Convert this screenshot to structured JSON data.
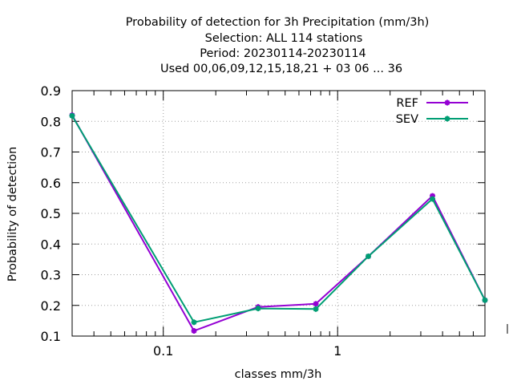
{
  "chart_data": {
    "type": "line",
    "title_lines": [
      "Probability of detection  for 3h Precipitation (mm/3h)",
      "Selection: ALL    114 stations",
      "Period: 20230114-20230114",
      "Used  00,06,09,12,15,18,21  + 03 06 ... 36"
    ],
    "xlabel": "classes mm/3h",
    "ylabel": "Probability of detection",
    "x_scale": "log",
    "xlim": [
      0.03,
      7.0
    ],
    "ylim": [
      0.1,
      0.9
    ],
    "x_ticks": [
      0.1,
      1
    ],
    "x_tick_labels": [
      "0.1",
      "1"
    ],
    "y_ticks": [
      0.1,
      0.2,
      0.3,
      0.4,
      0.5,
      0.6,
      0.7,
      0.8,
      0.9
    ],
    "y_tick_labels": [
      "0.1",
      "0.2",
      "0.3",
      "0.4",
      "0.5",
      "0.6",
      "0.7",
      "0.8",
      "0.9"
    ],
    "grid": true,
    "legend_position": "top-right",
    "x": [
      0.03,
      0.15,
      0.35,
      0.75,
      1.5,
      3.5,
      7.0
    ],
    "series": [
      {
        "name": "REF",
        "color": "#9400d3",
        "values": [
          0.82,
          0.117,
          0.195,
          0.205,
          0.36,
          0.557,
          0.217
        ]
      },
      {
        "name": "SEV",
        "color": "#009e73",
        "values": [
          0.818,
          0.145,
          0.19,
          0.188,
          0.36,
          0.547,
          0.217
        ]
      }
    ]
  }
}
